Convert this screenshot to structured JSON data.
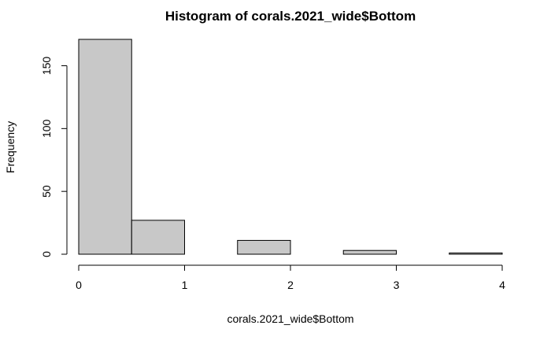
{
  "chart_data": {
    "type": "bar",
    "title": "Histogram of corals.2021_wide$Bottom",
    "xlabel": "corals.2021_wide$Bottom",
    "ylabel": "Frequency",
    "bins": [
      {
        "start": 0.0,
        "end": 0.5,
        "count": 171
      },
      {
        "start": 0.5,
        "end": 1.0,
        "count": 27
      },
      {
        "start": 1.0,
        "end": 1.5,
        "count": 0
      },
      {
        "start": 1.5,
        "end": 2.0,
        "count": 11
      },
      {
        "start": 2.0,
        "end": 2.5,
        "count": 0
      },
      {
        "start": 2.5,
        "end": 3.0,
        "count": 3
      },
      {
        "start": 3.0,
        "end": 3.5,
        "count": 0
      },
      {
        "start": 3.5,
        "end": 4.0,
        "count": 1
      }
    ],
    "xlim": [
      0,
      4
    ],
    "ylim": [
      0,
      171
    ],
    "x_ticks": [
      0,
      1,
      2,
      3,
      4
    ],
    "y_ticks": [
      0,
      50,
      100,
      150
    ],
    "grid": false,
    "colors": {
      "bar_fill": "#c8c8c8",
      "bar_stroke": "#000000"
    }
  }
}
